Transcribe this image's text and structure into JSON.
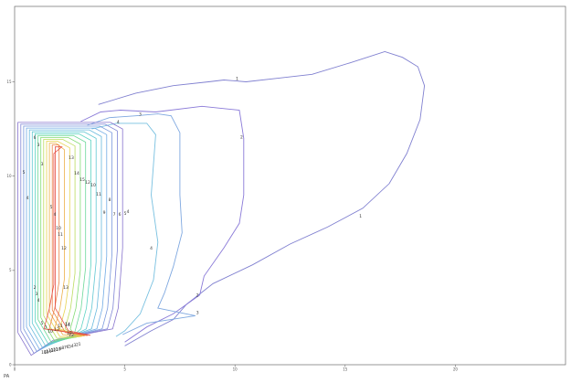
{
  "chart_data": {
    "type": "contour",
    "xlabel": "PA",
    "ylabel": "",
    "xlim": [
      0,
      25
    ],
    "ylim": [
      0,
      19
    ],
    "x_ticks": [
      {
        "value": 0,
        "label": "0"
      },
      {
        "value": 5,
        "label": "5"
      },
      {
        "value": 10,
        "label": "10"
      },
      {
        "value": 15,
        "label": "15"
      },
      {
        "value": 20,
        "label": "20"
      }
    ],
    "y_ticks": [
      {
        "value": 0,
        "label": "0"
      },
      {
        "value": 5,
        "label": "5"
      },
      {
        "value": 10,
        "label": "10"
      },
      {
        "value": 15,
        "label": "15"
      }
    ],
    "outer_contours": [
      {
        "level": 1,
        "color": "#8080d0",
        "labels": [
          {
            "x": 10.1,
            "y": 15.1
          },
          {
            "x": 15.7,
            "y": 7.8
          }
        ],
        "path": [
          [
            3.8,
            13.8
          ],
          [
            5.5,
            14.4
          ],
          [
            7.2,
            14.8
          ],
          [
            8.8,
            15.0
          ],
          [
            9.5,
            15.1
          ],
          [
            10.5,
            15.0
          ],
          [
            12.0,
            15.2
          ],
          [
            13.5,
            15.4
          ],
          [
            15.2,
            16.0
          ],
          [
            16.8,
            16.6
          ],
          [
            17.6,
            16.3
          ],
          [
            18.3,
            15.8
          ],
          [
            18.6,
            14.8
          ],
          [
            18.4,
            13.0
          ],
          [
            17.8,
            11.2
          ],
          [
            17.0,
            9.6
          ],
          [
            15.8,
            8.3
          ],
          [
            14.2,
            7.3
          ],
          [
            12.5,
            6.4
          ],
          [
            10.8,
            5.3
          ],
          [
            9.0,
            4.3
          ],
          [
            7.8,
            3.2
          ],
          [
            7.2,
            2.4
          ],
          [
            6.2,
            1.8
          ],
          [
            5.0,
            1.0
          ]
        ]
      },
      {
        "level": 2,
        "color": "#8a7ad8",
        "labels": [
          {
            "x": 10.3,
            "y": 12.0
          },
          {
            "x": 8.3,
            "y": 3.6
          }
        ],
        "path": [
          [
            3.0,
            12.9
          ],
          [
            3.9,
            13.4
          ],
          [
            4.8,
            13.5
          ],
          [
            6.4,
            13.4
          ],
          [
            8.5,
            13.7
          ],
          [
            10.2,
            13.5
          ],
          [
            10.4,
            12.0
          ],
          [
            10.4,
            9.0
          ],
          [
            10.2,
            7.5
          ],
          [
            9.5,
            6.2
          ],
          [
            8.6,
            4.7
          ],
          [
            8.4,
            3.7
          ],
          [
            7.2,
            2.7
          ],
          [
            6.0,
            2.0
          ],
          [
            5.0,
            1.2
          ]
        ]
      },
      {
        "level": 3,
        "color": "#7fa8e0",
        "labels": [
          {
            "x": 5.7,
            "y": 13.2
          },
          {
            "x": 8.3,
            "y": 2.7
          }
        ],
        "path": [
          [
            3.3,
            12.7
          ],
          [
            4.3,
            13.1
          ],
          [
            5.5,
            13.2
          ],
          [
            6.5,
            13.3
          ],
          [
            7.1,
            13.2
          ],
          [
            7.5,
            12.3
          ],
          [
            7.5,
            9.0
          ],
          [
            7.6,
            7.0
          ],
          [
            7.2,
            5.2
          ],
          [
            6.8,
            3.8
          ],
          [
            6.5,
            3.0
          ],
          [
            8.2,
            2.6
          ],
          [
            6.0,
            2.2
          ],
          [
            4.9,
            1.6
          ]
        ]
      },
      {
        "level": 4,
        "color": "#78c0e0",
        "labels": [
          {
            "x": 4.7,
            "y": 12.8
          },
          {
            "x": 6.2,
            "y": 6.1
          }
        ],
        "path": [
          [
            3.5,
            12.5
          ],
          [
            4.6,
            12.8
          ],
          [
            6.0,
            12.8
          ],
          [
            6.4,
            12.2
          ],
          [
            6.2,
            9.0
          ],
          [
            6.5,
            6.5
          ],
          [
            6.3,
            4.5
          ],
          [
            5.7,
            2.7
          ],
          [
            5.0,
            1.8
          ],
          [
            4.6,
            1.5
          ]
        ]
      }
    ],
    "inner_contours": {
      "nested_count": 14,
      "left_labels": [
        "6",
        "3",
        "5",
        "3",
        "4",
        "5",
        "4",
        "10",
        "11",
        "12",
        "13",
        "14",
        "12",
        "2",
        "3",
        "4",
        "5",
        "7",
        "10",
        "13",
        "11",
        "14",
        "12"
      ],
      "right_labels": [
        "13",
        "14",
        "15",
        "12",
        "10",
        "11",
        "9",
        "8",
        "7",
        "6",
        "5",
        "4"
      ],
      "bottom_labels": [
        "16",
        "15",
        "14",
        "13",
        "12",
        "11",
        "10",
        "9",
        "8",
        "7",
        "6",
        "5",
        "4",
        "3",
        "2",
        "1"
      ]
    }
  }
}
